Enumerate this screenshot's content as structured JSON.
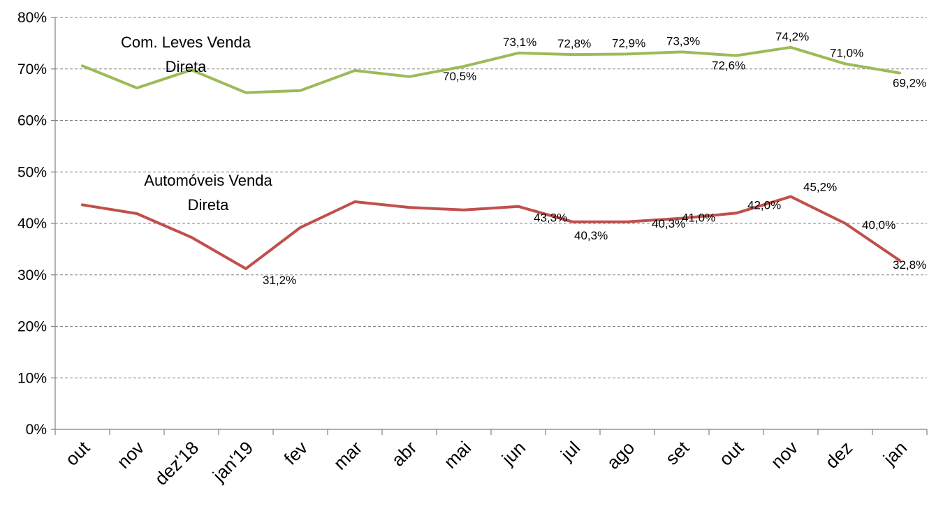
{
  "chart_data": {
    "type": "line",
    "title": "",
    "xlabel": "",
    "ylabel": "",
    "ylim": [
      0,
      80
    ],
    "yticks": [
      "0%",
      "10%",
      "20%",
      "30%",
      "40%",
      "50%",
      "60%",
      "70%",
      "80%"
    ],
    "grid": true,
    "categories": [
      "out",
      "nov",
      "dez'18",
      "jan'19",
      "fev",
      "mar",
      "abr",
      "mai",
      "jun",
      "jul",
      "ago",
      "set",
      "out",
      "nov",
      "dez",
      "jan"
    ],
    "series": [
      {
        "name": "Com. Leves Venda Direta",
        "name_lines": [
          "Com. Leves Venda",
          "Direta"
        ],
        "color": "#9BBB59",
        "values": [
          70.6,
          66.3,
          69.8,
          65.4,
          65.8,
          69.7,
          68.5,
          70.5,
          73.1,
          72.8,
          72.9,
          73.3,
          72.6,
          74.2,
          71.0,
          69.2
        ],
        "labels": [
          "",
          "",
          "",
          "",
          "",
          "",
          "",
          "70,5%",
          "73,1%",
          "72,8%",
          "72,9%",
          "73,3%",
          "72,6%",
          "74,2%",
          "71,0%",
          "69,2%"
        ]
      },
      {
        "name": "Automóveis Venda Direta",
        "name_lines": [
          "Automóveis Venda",
          "Direta"
        ],
        "color": "#C0504D",
        "values": [
          43.6,
          41.9,
          37.3,
          31.2,
          39.2,
          44.2,
          43.1,
          42.6,
          43.3,
          40.3,
          40.3,
          41.0,
          42.0,
          45.2,
          40.0,
          32.8
        ],
        "labels": [
          "",
          "",
          "",
          "31,2%",
          "",
          "",
          "",
          "",
          "43,3%",
          "40,3%",
          "40,3%",
          "41,0%",
          "42,0%",
          "45,2%",
          "40,0%",
          "32,8%"
        ]
      }
    ]
  }
}
